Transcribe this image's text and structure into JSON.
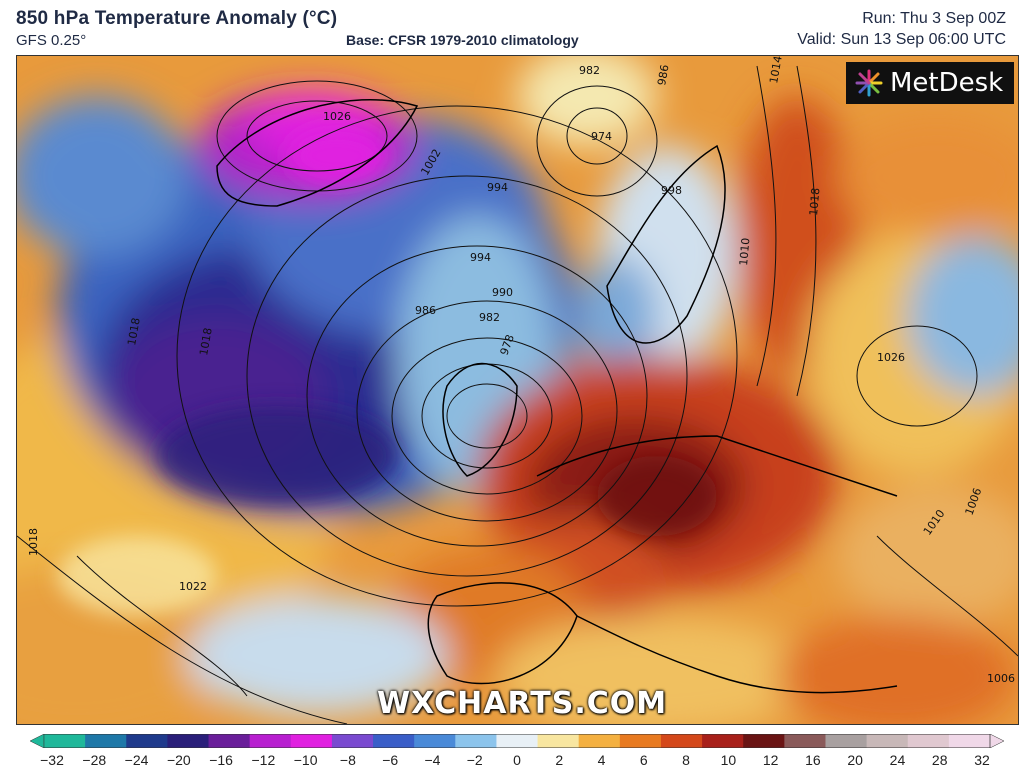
{
  "header": {
    "title": "850 hPa Temperature Anomaly (°C)",
    "model": "GFS 0.25°",
    "base": "Base: CFSR 1979-2010 climatology",
    "run": "Run: Thu 3 Sep 00Z",
    "valid": "Valid: Sun 13 Sep 06:00 UTC"
  },
  "logo": {
    "text": "MetDesk",
    "icon": "metdesk-logo-icon"
  },
  "watermark": "WXCHARTS.COM",
  "isobars": {
    "labels": [
      "1026",
      "1018",
      "1002",
      "994",
      "990",
      "986",
      "982",
      "978",
      "974",
      "982",
      "986",
      "994",
      "998",
      "1014",
      "1018",
      "1010",
      "1026",
      "1010",
      "1006",
      "1006",
      "1022",
      "1018",
      "1018"
    ]
  },
  "legend": {
    "ticks": [
      "−32",
      "−28",
      "−24",
      "−20",
      "−16",
      "−12",
      "−10",
      "−8",
      "−6",
      "−4",
      "−2",
      "0",
      "2",
      "4",
      "6",
      "8",
      "10",
      "12",
      "16",
      "20",
      "24",
      "28",
      "32"
    ],
    "colors": [
      "#1fb89a",
      "#1e78a8",
      "#1f3a8c",
      "#2a1f7a",
      "#6a1e9a",
      "#b81fd0",
      "#e020e0",
      "#7a4ad0",
      "#3a5ec8",
      "#4a8ad8",
      "#8cc4ec",
      "#e8f0f6",
      "#f8e6a0",
      "#f4b040",
      "#e87a20",
      "#d4481a",
      "#a8201a",
      "#6a1414",
      "#8a5a5a",
      "#a8a0a0",
      "#c8b8b8",
      "#e0c8d0",
      "#f0d8e8"
    ]
  }
}
